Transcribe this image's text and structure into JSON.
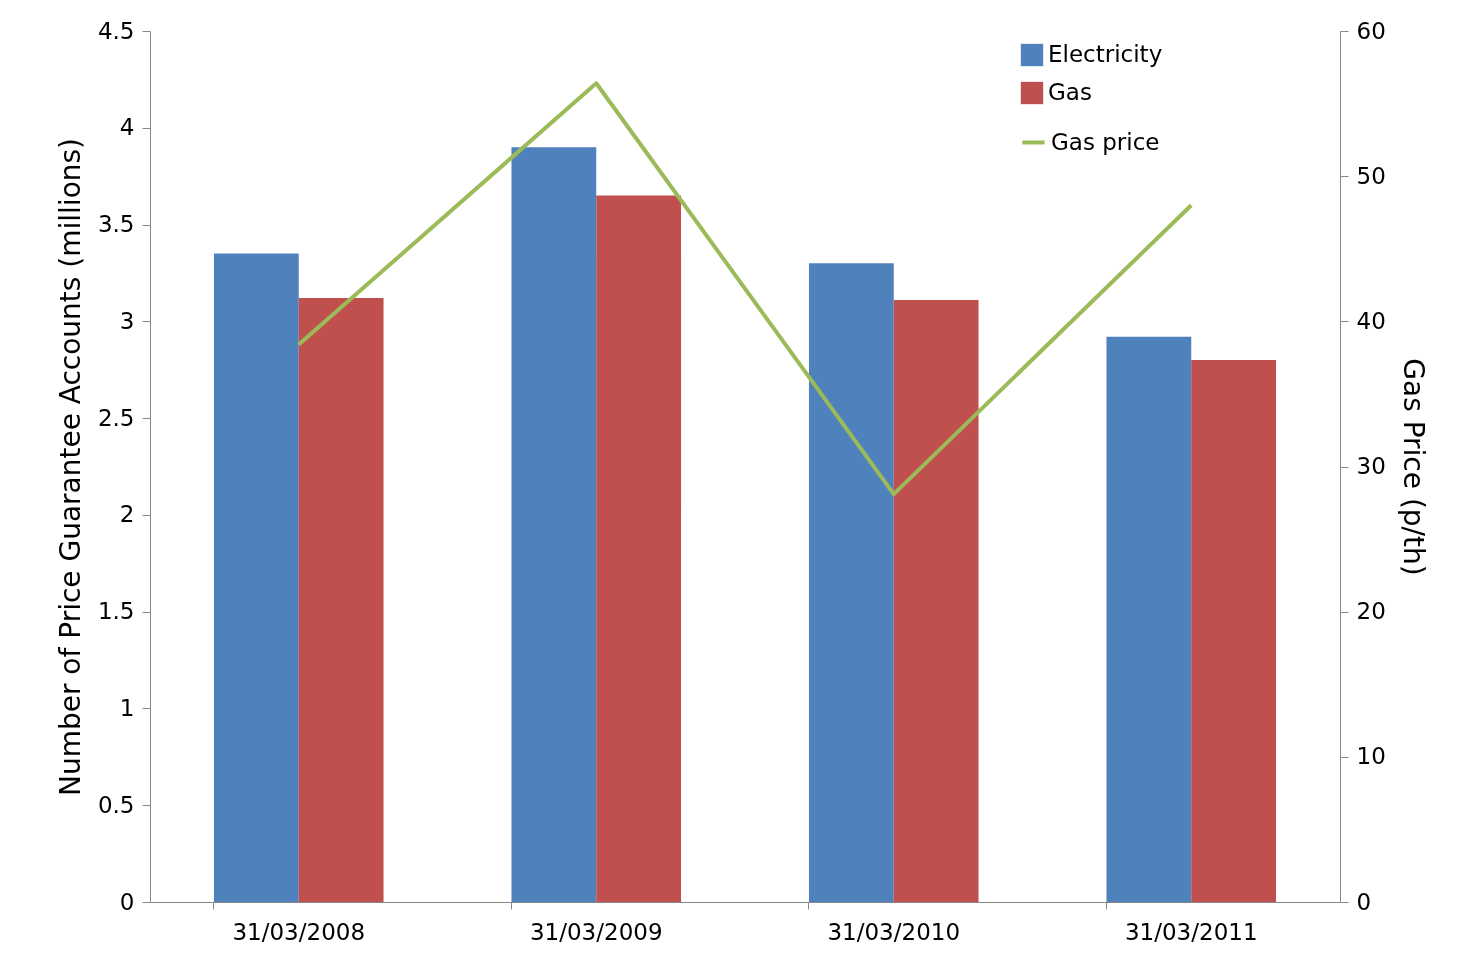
{
  "chart_data": {
    "type": "bar",
    "categories": [
      "31/03/2008",
      "31/03/2009",
      "31/03/2010",
      "31/03/2011"
    ],
    "series": [
      {
        "name": "Electricity",
        "color": "#4f81bd",
        "values": [
          3.35,
          3.9,
          3.3,
          2.92
        ]
      },
      {
        "name": "Gas",
        "color": "#c0504d",
        "values": [
          3.12,
          3.65,
          3.11,
          2.8
        ]
      },
      {
        "name": "Gas price",
        "type": "line",
        "axis": "y2",
        "color": "#9bbb59",
        "values": [
          38.4,
          56.4,
          28.1,
          48.0
        ]
      }
    ],
    "ylabel": "Number of  Price Guarantee Accounts (millions)",
    "y2label": "Gas Price (p/th)",
    "ylim": [
      0,
      4.5
    ],
    "yticks": [
      0,
      0.5,
      1,
      1.5,
      2,
      2.5,
      3,
      3.5,
      4,
      4.5
    ],
    "y2lim": [
      0,
      60
    ],
    "y2ticks": [
      0,
      10,
      20,
      30,
      40,
      50,
      60
    ],
    "legend": "top right"
  }
}
